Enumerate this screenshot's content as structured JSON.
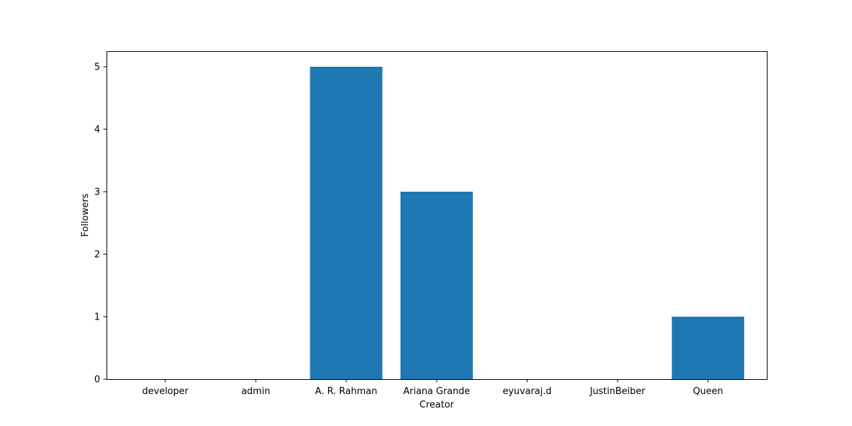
{
  "chart_data": {
    "type": "bar",
    "title": "",
    "xlabel": "Creator",
    "ylabel": "Followers",
    "categories": [
      "developer",
      "admin",
      "A. R. Rahman",
      "Ariana Grande",
      "eyuvaraj.d",
      "JustinBeiber",
      "Queen"
    ],
    "values": [
      0,
      0,
      5,
      3,
      0,
      0,
      1
    ],
    "yticks": [
      0,
      1,
      2,
      3,
      4,
      5
    ],
    "ylim": [
      0,
      5.25
    ],
    "grid": false,
    "legend": "none",
    "bar_color": "#1f77b4"
  }
}
